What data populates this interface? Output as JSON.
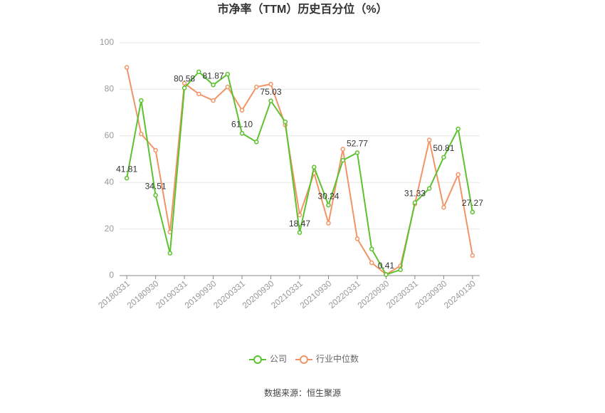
{
  "chart_data": {
    "type": "line",
    "title": "市净率（TTM）历史百分位（%）",
    "categories": [
      "20180331",
      null,
      "20180930",
      null,
      "20190331",
      null,
      "20190930",
      null,
      "20200331",
      null,
      "20200930",
      null,
      "20210331",
      null,
      "20210930",
      null,
      "20220331",
      null,
      "20220930",
      null,
      "20230331",
      null,
      "20230930",
      null,
      "20240130"
    ],
    "series": [
      {
        "name": "公司",
        "color": "#5cc22f",
        "values": [
          41.81,
          75.2,
          34.51,
          9.6,
          80.58,
          87.5,
          81.87,
          86.5,
          61.1,
          57.4,
          75.03,
          66,
          18.47,
          46.6,
          30.24,
          49.5,
          52.77,
          11.4,
          0.41,
          2.5,
          31.33,
          37.4,
          50.81,
          63,
          27.27
        ],
        "value_labels": [
          "41.81",
          null,
          "34.51",
          null,
          "80.58",
          null,
          "81.87",
          null,
          "61.10",
          null,
          "75.03",
          null,
          "18.47",
          null,
          "30.24",
          null,
          "52.77",
          null,
          "0.41",
          null,
          "31.33",
          null,
          "50.81",
          null,
          "27.27"
        ]
      },
      {
        "name": "行业中位数",
        "color": "#f39466",
        "values": [
          89.4,
          60.8,
          53.8,
          18.7,
          82.6,
          78,
          75.2,
          81,
          71,
          81,
          82.2,
          64.7,
          26,
          44,
          22.5,
          54.3,
          15.8,
          5.5,
          0.5,
          4.2,
          30.8,
          58.2,
          29.3,
          43.4,
          8.6
        ]
      }
    ],
    "ylim": [
      0,
      100
    ],
    "yticks": [
      0,
      20,
      40,
      60,
      80,
      100
    ],
    "grid": true,
    "legend": "bottom",
    "source": "数据来源：恒生聚源"
  }
}
